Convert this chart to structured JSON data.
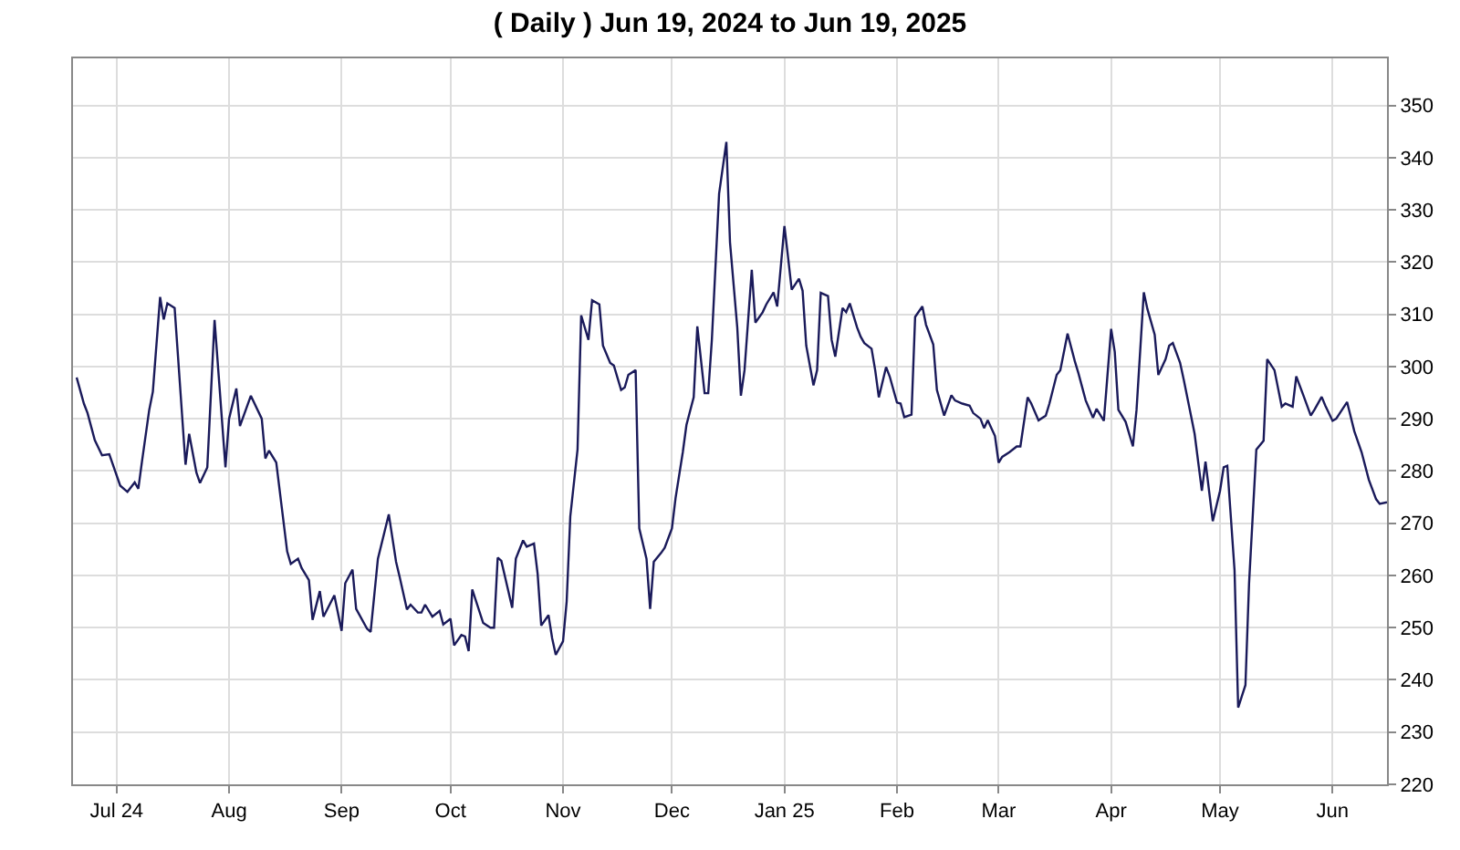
{
  "chart_data": {
    "type": "line",
    "title": "( Daily ) Jun 19, 2024 to Jun 19, 2025",
    "x": [
      "2024-06-20",
      "2024-06-22",
      "2024-06-23",
      "2024-06-25",
      "2024-06-27",
      "2024-06-29",
      "2024-07-02",
      "2024-07-04",
      "2024-07-06",
      "2024-07-07",
      "2024-07-08",
      "2024-07-10",
      "2024-07-11",
      "2024-07-13",
      "2024-07-14",
      "2024-07-15",
      "2024-07-17",
      "2024-07-20",
      "2024-07-21",
      "2024-07-23",
      "2024-07-24",
      "2024-07-26",
      "2024-07-28",
      "2024-07-31",
      "2024-08-01",
      "2024-08-03",
      "2024-08-04",
      "2024-08-07",
      "2024-08-10",
      "2024-08-11",
      "2024-08-12",
      "2024-08-14",
      "2024-08-17",
      "2024-08-18",
      "2024-08-20",
      "2024-08-21",
      "2024-08-23",
      "2024-08-24",
      "2024-08-26",
      "2024-08-27",
      "2024-08-30",
      "2024-09-01",
      "2024-09-02",
      "2024-09-04",
      "2024-09-05",
      "2024-09-08",
      "2024-09-09",
      "2024-09-11",
      "2024-09-14",
      "2024-09-16",
      "2024-09-17",
      "2024-09-19",
      "2024-09-20",
      "2024-09-22",
      "2024-09-23",
      "2024-09-24",
      "2024-09-26",
      "2024-09-28",
      "2024-09-29",
      "2024-10-01",
      "2024-10-02",
      "2024-10-04",
      "2024-10-05",
      "2024-10-06",
      "2024-10-07",
      "2024-10-10",
      "2024-10-12",
      "2024-10-13",
      "2024-10-14",
      "2024-10-15",
      "2024-10-17",
      "2024-10-18",
      "2024-10-19",
      "2024-10-21",
      "2024-10-22",
      "2024-10-24",
      "2024-10-25",
      "2024-10-26",
      "2024-10-28",
      "2024-10-29",
      "2024-10-30",
      "2024-11-01",
      "2024-11-02",
      "2024-11-03",
      "2024-11-05",
      "2024-11-06",
      "2024-11-08",
      "2024-11-09",
      "2024-11-11",
      "2024-11-12",
      "2024-11-14",
      "2024-11-15",
      "2024-11-17",
      "2024-11-18",
      "2024-11-19",
      "2024-11-21",
      "2024-11-22",
      "2024-11-24",
      "2024-11-25",
      "2024-11-26",
      "2024-11-28",
      "2024-11-29",
      "2024-12-01",
      "2024-12-02",
      "2024-12-04",
      "2024-12-05",
      "2024-12-07",
      "2024-12-08",
      "2024-12-10",
      "2024-12-11",
      "2024-12-12",
      "2024-12-14",
      "2024-12-16",
      "2024-12-17",
      "2024-12-19",
      "2024-12-20",
      "2024-12-21",
      "2024-12-23",
      "2024-12-24",
      "2024-12-26",
      "2024-12-27",
      "2024-12-29",
      "2024-12-30",
      "2025-01-01",
      "2025-01-02",
      "2025-01-03",
      "2025-01-05",
      "2025-01-06",
      "2025-01-07",
      "2025-01-09",
      "2025-01-10",
      "2025-01-11",
      "2025-01-13",
      "2025-01-14",
      "2025-01-15",
      "2025-01-17",
      "2025-01-18",
      "2025-01-19",
      "2025-01-21",
      "2025-01-22",
      "2025-01-23",
      "2025-01-25",
      "2025-01-26",
      "2025-01-27",
      "2025-01-29",
      "2025-01-30",
      "2025-02-01",
      "2025-02-02",
      "2025-02-03",
      "2025-02-05",
      "2025-02-06",
      "2025-02-08",
      "2025-02-09",
      "2025-02-11",
      "2025-02-12",
      "2025-02-14",
      "2025-02-16",
      "2025-02-17",
      "2025-02-19",
      "2025-02-21",
      "2025-02-22",
      "2025-02-24",
      "2025-02-25",
      "2025-02-26",
      "2025-02-28",
      "2025-03-01",
      "2025-03-02",
      "2025-03-04",
      "2025-03-06",
      "2025-03-07",
      "2025-03-09",
      "2025-03-10",
      "2025-03-12",
      "2025-03-14",
      "2025-03-15",
      "2025-03-17",
      "2025-03-18",
      "2025-03-20",
      "2025-03-22",
      "2025-03-23",
      "2025-03-25",
      "2025-03-27",
      "2025-03-28",
      "2025-03-30",
      "2025-04-01",
      "2025-04-02",
      "2025-04-03",
      "2025-04-05",
      "2025-04-07",
      "2025-04-08",
      "2025-04-10",
      "2025-04-11",
      "2025-04-13",
      "2025-04-14",
      "2025-04-16",
      "2025-04-17",
      "2025-04-18",
      "2025-04-20",
      "2025-04-21",
      "2025-04-23",
      "2025-04-24",
      "2025-04-26",
      "2025-04-27",
      "2025-04-29",
      "2025-05-01",
      "2025-05-02",
      "2025-05-03",
      "2025-05-05",
      "2025-05-06",
      "2025-05-08",
      "2025-05-09",
      "2025-05-11",
      "2025-05-13",
      "2025-05-14",
      "2025-05-16",
      "2025-05-18",
      "2025-05-19",
      "2025-05-21",
      "2025-05-22",
      "2025-05-24",
      "2025-05-26",
      "2025-05-27",
      "2025-05-29",
      "2025-05-30",
      "2025-06-01",
      "2025-06-02",
      "2025-06-05",
      "2025-06-07",
      "2025-06-09",
      "2025-06-11",
      "2025-06-13",
      "2025-06-14",
      "2025-06-16"
    ],
    "series": [
      {
        "color": "#1a1a5a",
        "values": [
          297.9,
          292.9,
          291.1,
          285.9,
          283.0,
          283.2,
          277.2,
          276.0,
          277.8,
          276.6,
          281.8,
          291.7,
          295.2,
          313.3,
          309.0,
          312.1,
          311.2,
          281.2,
          287.1,
          279.7,
          277.7,
          280.7,
          308.9,
          280.7,
          290.0,
          295.8,
          288.6,
          294.4,
          290.0,
          282.4,
          283.9,
          281.6,
          264.6,
          262.2,
          263.2,
          261.4,
          259.1,
          251.5,
          257.0,
          252.1,
          256.2,
          249.4,
          258.5,
          261.1,
          253.6,
          249.8,
          249.2,
          263.2,
          271.7,
          262.6,
          259.7,
          253.5,
          254.4,
          252.9,
          252.9,
          254.4,
          252.1,
          253.2,
          250.6,
          251.7,
          246.6,
          248.6,
          248.3,
          245.5,
          257.3,
          250.9,
          250.0,
          250.0,
          263.4,
          262.8,
          256.8,
          253.8,
          263.2,
          266.7,
          265.5,
          266.1,
          260.3,
          250.4,
          252.4,
          248.0,
          244.8,
          247.4,
          255.0,
          271.3,
          284.1,
          309.8,
          305.1,
          312.7,
          311.9,
          304.0,
          300.7,
          300.2,
          295.5,
          296.0,
          298.4,
          299.3,
          269.0,
          263.2,
          253.6,
          262.6,
          264.3,
          265.3,
          269.0,
          274.8,
          283.6,
          288.8,
          294.1,
          307.7,
          294.9,
          294.9,
          305.1,
          333.1,
          343.0,
          323.8,
          307.5,
          294.4,
          299.3,
          318.5,
          308.4,
          310.4,
          311.9,
          314.2,
          311.5,
          326.9,
          320.9,
          314.7,
          316.8,
          314.5,
          304.0,
          296.4,
          299.3,
          314.1,
          313.5,
          305.1,
          301.9,
          311.2,
          310.4,
          312.1,
          307.5,
          305.7,
          304.5,
          303.4,
          299.3,
          294.1,
          299.9,
          298.1,
          293.1,
          292.9,
          290.3,
          290.8,
          309.5,
          311.5,
          308.0,
          304.2,
          295.5,
          290.6,
          294.5,
          293.5,
          292.9,
          292.5,
          291.1,
          290.0,
          288.2,
          289.7,
          286.7,
          281.6,
          282.7,
          283.6,
          284.7,
          284.7,
          294.1,
          292.9,
          289.7,
          290.6,
          292.9,
          298.4,
          299.3,
          306.3,
          301.0,
          298.7,
          293.5,
          290.2,
          291.9,
          289.6,
          307.2,
          302.8,
          291.7,
          289.4,
          284.7,
          291.7,
          314.2,
          311.0,
          306.1,
          298.4,
          301.4,
          304.0,
          304.5,
          300.7,
          297.5,
          290.6,
          287.1,
          276.2,
          281.8,
          270.4,
          276.2,
          280.7,
          281.0,
          261.0,
          234.7,
          239.0,
          258.5,
          284.1,
          285.8,
          301.4,
          299.3,
          292.3,
          292.9,
          292.3,
          298.1,
          294.4,
          290.6,
          291.7,
          294.2,
          292.5,
          289.6,
          290.0,
          293.2,
          287.6,
          283.6,
          278.3,
          274.6,
          273.7,
          274.0
        ]
      }
    ],
    "xlim": [
      "2024-06-19",
      "2025-06-16"
    ],
    "xticks": [
      {
        "value": "2024-07-01",
        "label": "Jul 24"
      },
      {
        "value": "2024-08-01",
        "label": "Aug"
      },
      {
        "value": "2024-09-01",
        "label": "Sep"
      },
      {
        "value": "2024-10-01",
        "label": "Oct"
      },
      {
        "value": "2024-11-01",
        "label": "Nov"
      },
      {
        "value": "2024-12-01",
        "label": "Dec"
      },
      {
        "value": "2025-01-01",
        "label": "Jan 25"
      },
      {
        "value": "2025-02-01",
        "label": "Feb"
      },
      {
        "value": "2025-03-01",
        "label": "Mar"
      },
      {
        "value": "2025-04-01",
        "label": "Apr"
      },
      {
        "value": "2025-05-01",
        "label": "May"
      },
      {
        "value": "2025-06-01",
        "label": "Jun"
      }
    ],
    "ylim": [
      220,
      359
    ],
    "yticks": [
      220,
      230,
      240,
      250,
      260,
      270,
      280,
      290,
      300,
      310,
      320,
      330,
      340,
      350
    ],
    "grid": true,
    "marker": "none",
    "line_style": "solid"
  }
}
